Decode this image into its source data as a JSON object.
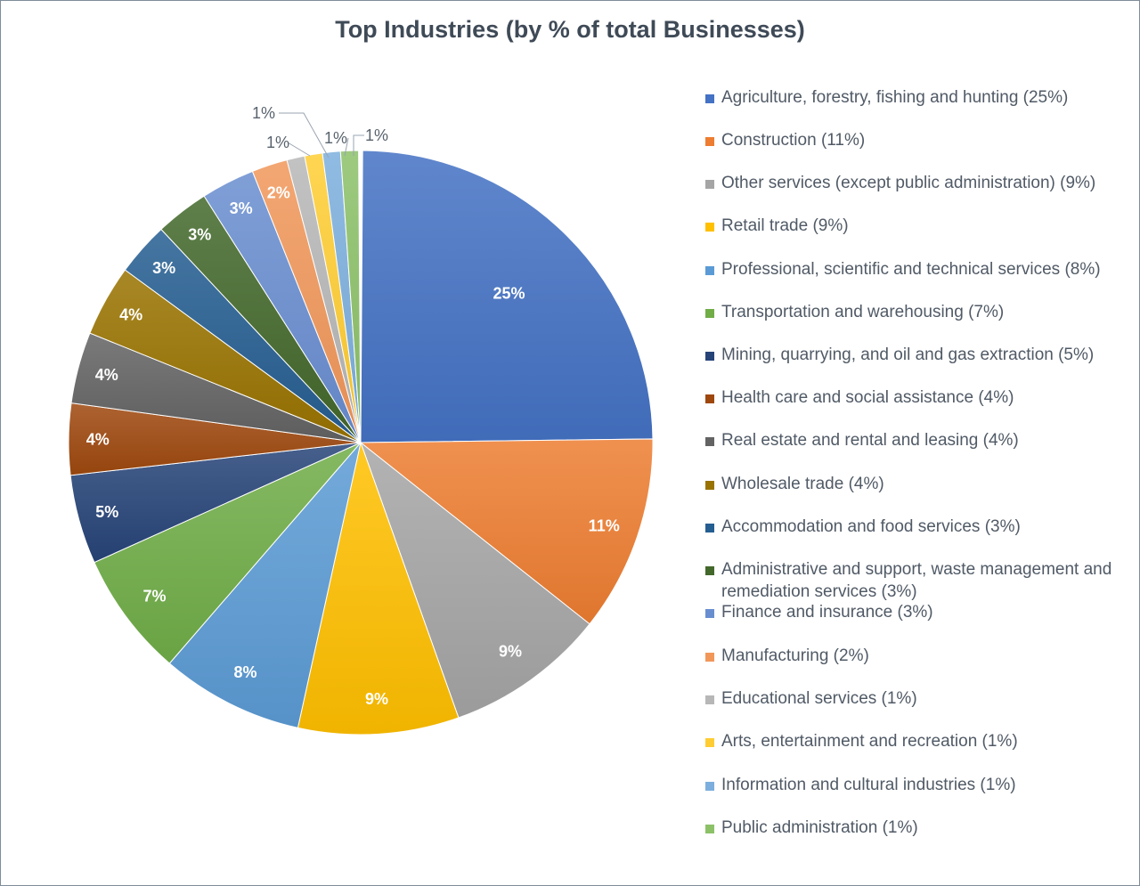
{
  "title": "Top Industries  (by % of total Businesses)",
  "chart_data": {
    "type": "pie",
    "title": "Top Industries  (by % of total Businesses)",
    "legend_position": "right",
    "series": [
      {
        "label": "25%",
        "value": 25,
        "legend": "Agriculture, forestry, fishing and hunting (25%)",
        "color": "#4472c4"
      },
      {
        "label": "11%",
        "value": 11,
        "legend": "Construction (11%)",
        "color": "#ed7d31"
      },
      {
        "label": "9%",
        "value": 9,
        "legend": "Other services (except public administration) (9%)",
        "color": "#a5a5a5"
      },
      {
        "label": "9%",
        "value": 9,
        "legend": "Retail trade (9%)",
        "color": "#ffc000"
      },
      {
        "label": "8%",
        "value": 8,
        "legend": "Professional, scientific and technical services (8%)",
        "color": "#5b9bd5"
      },
      {
        "label": "7%",
        "value": 7,
        "legend": "Transportation and warehousing (7%)",
        "color": "#70ad47"
      },
      {
        "label": "5%",
        "value": 5,
        "legend": "Mining, quarrying, and oil and gas extraction (5%)",
        "color": "#264478"
      },
      {
        "label": "4%",
        "value": 4,
        "legend": "Health care and social assistance (4%)",
        "color": "#9e480e"
      },
      {
        "label": "4%",
        "value": 4,
        "legend": "Real estate and rental and leasing (4%)",
        "color": "#636363"
      },
      {
        "label": "4%",
        "value": 4,
        "legend": "Wholesale trade (4%)",
        "color": "#997300"
      },
      {
        "label": "3%",
        "value": 3,
        "legend": "Accommodation and food services (3%)",
        "color": "#255e91"
      },
      {
        "label": "3%",
        "value": 3,
        "legend": "Administrative and support, waste management and remediation services (3%)",
        "color": "#43682b"
      },
      {
        "label": "3%",
        "value": 3,
        "legend": "Finance and insurance (3%)",
        "color": "#698ed0"
      },
      {
        "label": "2%",
        "value": 2,
        "legend": "Manufacturing (2%)",
        "color": "#f1975a"
      },
      {
        "label": "1%",
        "value": 1,
        "legend": "Educational services (1%)",
        "color": "#b7b7b7"
      },
      {
        "label": "1%",
        "value": 1,
        "legend": "Arts, entertainment and recreation (1%)",
        "color": "#ffcd33"
      },
      {
        "label": "1%",
        "value": 1,
        "legend": "Information and cultural industries (1%)",
        "color": "#7cafdd"
      },
      {
        "label": "1%",
        "value": 1,
        "legend": "Public administration (1%)",
        "color": "#8cc168"
      }
    ]
  }
}
